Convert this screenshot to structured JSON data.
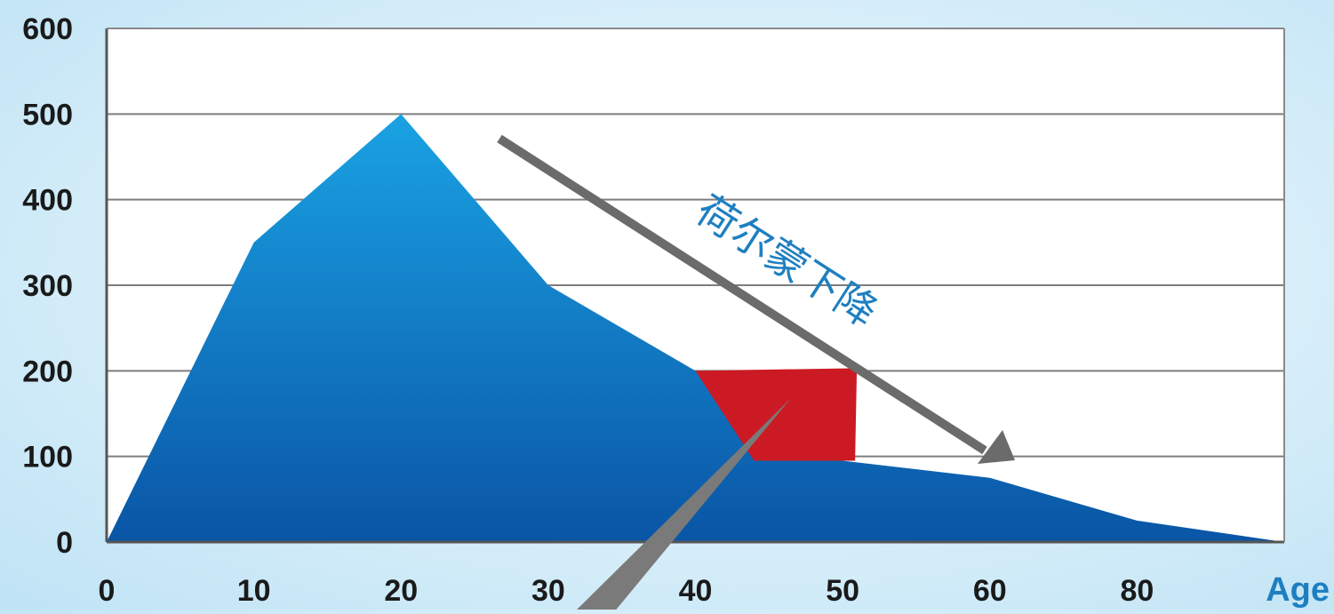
{
  "chart_data": {
    "type": "area",
    "x_tick_labels": [
      "0",
      "10",
      "20",
      "30",
      "40",
      "50",
      "60",
      "80"
    ],
    "x_axis_end_label": "Age",
    "y_tick_labels": [
      "0",
      "100",
      "200",
      "300",
      "400",
      "500",
      "600"
    ],
    "ylim": [
      0,
      600
    ],
    "grid": true,
    "series": [
      {
        "values": [
          {
            "x": "0",
            "y": 0
          },
          {
            "x": "10",
            "y": 350
          },
          {
            "x": "20",
            "y": 500
          },
          {
            "x": "30",
            "y": 300
          },
          {
            "x": "40",
            "y": 200
          },
          {
            "x": "50",
            "y": 95
          },
          {
            "x": "60",
            "y": 75
          },
          {
            "x": "80",
            "y": 25
          },
          {
            "x": "Age",
            "y": 0
          }
        ]
      }
    ],
    "highlight": {
      "x_from": "40",
      "x_to": "50",
      "y_level": 200,
      "color": "#cc1a24"
    },
    "annotation": {
      "text": "荷尔蒙下降",
      "color": "#1e7fc0"
    },
    "colors": {
      "area_top": "#1aa2e3",
      "area_bottom": "#0a55a6",
      "axis_label_accent": "#1e7fc0",
      "arrow": "#6b6b6b"
    }
  }
}
